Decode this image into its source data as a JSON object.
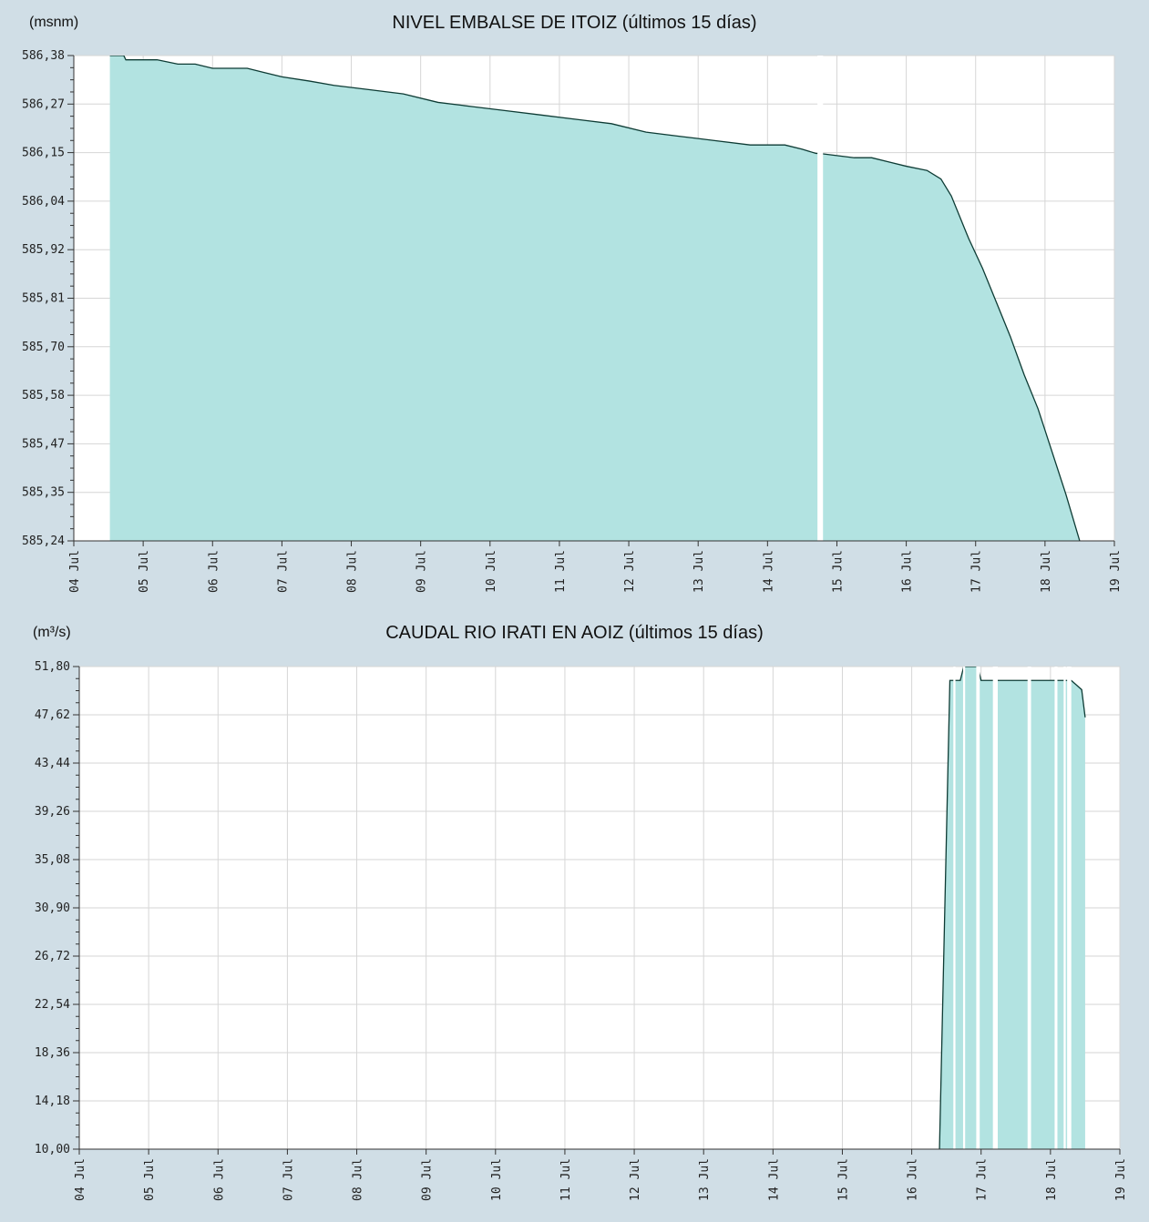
{
  "chart_data": [
    {
      "type": "area",
      "title": "NIVEL EMBALSE DE ITOIZ  (últimos 15 días)",
      "ylabel": "(msnm)",
      "ylim": [
        585.24,
        586.38
      ],
      "yticks": [
        "586,38",
        "586,27",
        "586,15",
        "586,04",
        "585,92",
        "585,81",
        "585,70",
        "585,58",
        "585,47",
        "585,35",
        "585,24"
      ],
      "xlim": [
        4,
        19
      ],
      "xticks": [
        "04 Jul",
        "05 Jul",
        "06 Jul",
        "07 Jul",
        "08 Jul",
        "09 Jul",
        "10 Jul",
        "11 Jul",
        "12 Jul",
        "13 Jul",
        "14 Jul",
        "15 Jul",
        "16 Jul",
        "17 Jul",
        "18 Jul",
        "19 Jul"
      ],
      "grid": true,
      "colors": {
        "fill": "#b2e3e1",
        "line": "#0d3b34",
        "plot_bg": "#ffffff"
      },
      "series": [
        {
          "x": [
            4.52,
            4.72,
            4.75,
            5.2,
            5.5,
            5.75,
            6.0,
            6.5,
            6.75,
            7.0,
            7.4,
            7.75,
            8.25,
            8.75,
            9.25,
            9.75,
            10.25,
            10.75,
            11.25,
            11.75,
            12.25,
            12.75,
            13.25,
            13.75,
            14.25,
            14.5,
            14.7,
            14.75,
            15.25,
            15.5,
            15.75,
            16.0,
            16.3,
            16.5,
            16.65,
            16.9,
            17.1,
            17.3,
            17.5,
            17.7,
            17.9,
            18.1,
            18.3,
            18.5
          ],
          "y": [
            586.38,
            586.38,
            586.37,
            586.37,
            586.36,
            586.36,
            586.35,
            586.35,
            586.34,
            586.33,
            586.32,
            586.31,
            586.3,
            586.29,
            586.27,
            586.26,
            586.25,
            586.24,
            586.23,
            586.22,
            586.2,
            586.19,
            586.18,
            586.17,
            586.17,
            586.16,
            586.15,
            586.15,
            586.14,
            586.14,
            586.13,
            586.12,
            586.11,
            586.09,
            586.05,
            585.95,
            585.88,
            585.8,
            585.72,
            585.63,
            585.55,
            585.45,
            585.35,
            585.24
          ],
          "gaps": [
            [
              14.72,
              14.8
            ]
          ]
        }
      ]
    },
    {
      "type": "area",
      "title": "CAUDAL RIO IRATI EN AOIZ  (últimos 15 días)",
      "ylabel": "(m³/s)",
      "ylim": [
        10.0,
        51.8
      ],
      "yticks": [
        "51,80",
        "47,62",
        "43,44",
        "39,26",
        "35,08",
        "30,90",
        "26,72",
        "22,54",
        "18,36",
        "14,18",
        "10,00"
      ],
      "xlim": [
        4,
        19
      ],
      "xticks": [
        "04 Jul",
        "05 Jul",
        "06 Jul",
        "07 Jul",
        "08 Jul",
        "09 Jul",
        "10 Jul",
        "11 Jul",
        "12 Jul",
        "13 Jul",
        "14 Jul",
        "15 Jul",
        "16 Jul",
        "17 Jul",
        "18 Jul",
        "19 Jul"
      ],
      "grid": true,
      "colors": {
        "fill": "#b2e3e1",
        "line": "#0d3b34",
        "plot_bg": "#ffffff"
      },
      "series": [
        {
          "x": [
            16.4,
            16.55,
            16.6,
            16.7,
            16.75,
            16.8,
            16.85,
            16.95,
            17.0,
            17.5,
            18.0,
            18.3,
            18.45,
            18.5
          ],
          "y": [
            10.0,
            50.6,
            50.6,
            50.6,
            52.2,
            52.2,
            52.2,
            52.2,
            50.6,
            50.6,
            50.6,
            50.6,
            49.8,
            47.4
          ],
          "gaps": [
            [
              16.6,
              16.63
            ],
            [
              16.74,
              16.77
            ],
            [
              16.93,
              16.98
            ],
            [
              17.17,
              17.24
            ],
            [
              17.67,
              17.72
            ],
            [
              18.06,
              18.1
            ],
            [
              18.19,
              18.22
            ],
            [
              18.24,
              18.3
            ]
          ]
        }
      ]
    }
  ]
}
